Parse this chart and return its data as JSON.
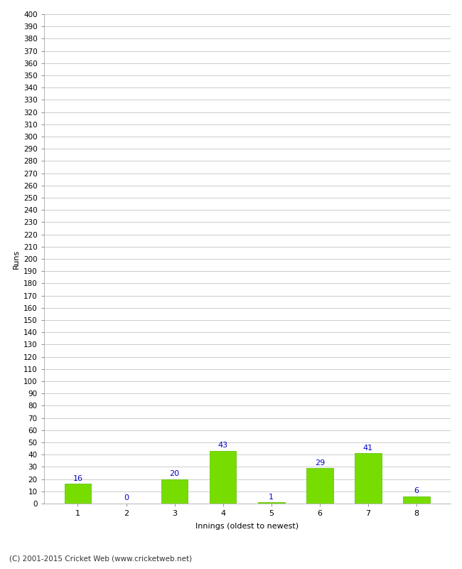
{
  "xlabel": "Innings (oldest to newest)",
  "ylabel": "Runs",
  "categories": [
    "1",
    "2",
    "3",
    "4",
    "5",
    "6",
    "7",
    "8"
  ],
  "values": [
    16,
    0,
    20,
    43,
    1,
    29,
    41,
    6
  ],
  "bar_color": "#77dd00",
  "bar_edge_color": "#55bb00",
  "value_color": "#0000cc",
  "ylim": [
    0,
    400
  ],
  "ytick_step": 10,
  "background_color": "#ffffff",
  "grid_color": "#cccccc",
  "footer": "(C) 2001-2015 Cricket Web (www.cricketweb.net)"
}
